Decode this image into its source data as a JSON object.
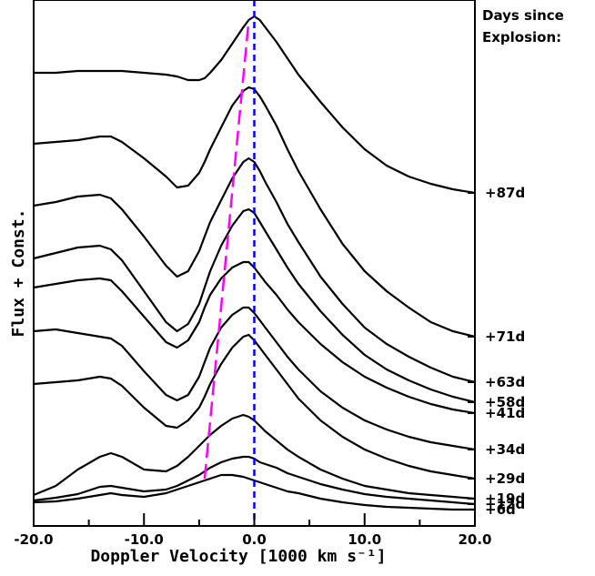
{
  "chart_data": {
    "type": "line",
    "title": "",
    "xlabel": "Doppler Velocity [1000 km s⁻¹]",
    "ylabel": "Flux + Const.",
    "xlim": [
      -20,
      20
    ],
    "x_ticks": [
      "-20.0",
      "-10.0",
      "0.0",
      "10.0",
      "20.0"
    ],
    "legend_title_line1": "Days since",
    "legend_title_line2": "Explosion:",
    "grid": false,
    "x": [
      -20,
      -18,
      -16,
      -14,
      -13,
      -12,
      -10,
      -8,
      -7,
      -6,
      -5,
      -4.5,
      -4,
      -3,
      -2,
      -1,
      -0.5,
      0,
      0.5,
      1,
      2,
      3,
      4,
      6,
      8,
      10,
      12,
      14,
      16,
      18,
      20
    ],
    "series": [
      {
        "name": "+6d",
        "values": [
          8,
          9,
          12,
          16,
          18,
          16,
          14,
          18,
          22,
          26,
          30,
          32,
          34,
          38,
          38,
          36,
          34,
          32,
          30,
          28,
          24,
          20,
          18,
          12,
          8,
          5,
          3,
          2,
          1,
          0,
          0
        ]
      },
      {
        "name": "+12d",
        "values": [
          10,
          13,
          17,
          25,
          26,
          24,
          20,
          22,
          26,
          32,
          38,
          42,
          46,
          52,
          56,
          58,
          58,
          56,
          52,
          50,
          46,
          40,
          36,
          28,
          22,
          17,
          14,
          12,
          10,
          8,
          6
        ]
      },
      {
        "name": "+19d",
        "values": [
          16,
          26,
          44,
          58,
          62,
          58,
          44,
          42,
          48,
          58,
          70,
          76,
          82,
          92,
          100,
          104,
          102,
          98,
          92,
          86,
          76,
          66,
          58,
          44,
          34,
          26,
          22,
          18,
          16,
          14,
          12
        ]
      },
      {
        "name": "+29d",
        "values": [
          138,
          140,
          142,
          146,
          144,
          136,
          112,
          92,
          90,
          98,
          112,
          124,
          138,
          160,
          178,
          190,
          192,
          186,
          178,
          170,
          154,
          138,
          122,
          98,
          80,
          66,
          56,
          48,
          42,
          38,
          34
        ]
      },
      {
        "name": "+34d",
        "values": [
          196,
          198,
          194,
          190,
          188,
          180,
          152,
          126,
          120,
          126,
          146,
          162,
          178,
          200,
          214,
          222,
          222,
          216,
          208,
          200,
          184,
          168,
          154,
          130,
          112,
          98,
          88,
          80,
          74,
          70,
          66
        ]
      },
      {
        "name": "+41d",
        "values": [
          244,
          248,
          252,
          254,
          252,
          240,
          212,
          184,
          178,
          186,
          206,
          222,
          236,
          254,
          266,
          272,
          272,
          266,
          258,
          250,
          236,
          220,
          206,
          182,
          162,
          146,
          134,
          124,
          116,
          110,
          106
        ]
      },
      {
        "name": "+58d",
        "values": [
          276,
          282,
          288,
          290,
          286,
          274,
          240,
          206,
          196,
          204,
          226,
          244,
          262,
          290,
          312,
          328,
          330,
          326,
          316,
          306,
          286,
          266,
          248,
          218,
          192,
          170,
          154,
          142,
          132,
          124,
          118
        ]
      },
      {
        "name": "+63d",
        "values": [
          334,
          338,
          344,
          346,
          342,
          330,
          300,
          268,
          256,
          262,
          284,
          300,
          316,
          340,
          364,
          382,
          386,
          382,
          372,
          360,
          338,
          314,
          294,
          256,
          226,
          200,
          182,
          168,
          156,
          146,
          140
        ]
      },
      {
        "name": "+71d",
        "values": [
          402,
          404,
          406,
          410,
          410,
          404,
          386,
          366,
          354,
          356,
          370,
          382,
          396,
          420,
          444,
          460,
          464,
          462,
          454,
          444,
          422,
          396,
          372,
          330,
          292,
          262,
          240,
          222,
          206,
          196,
          190
        ]
      },
      {
        "name": "+87d",
        "values": [
          480,
          480,
          482,
          482,
          482,
          482,
          480,
          478,
          476,
          472,
          472,
          474,
          480,
          494,
          512,
          530,
          538,
          542,
          538,
          530,
          514,
          496,
          478,
          448,
          420,
          396,
          378,
          366,
          358,
          352,
          348
        ]
      }
    ],
    "peak_trend_line": {
      "color": "#ff00ff",
      "x": [
        -4.5,
        -0.5
      ],
      "y": [
        34,
        538
      ]
    },
    "rest_velocity_line": {
      "color": "#0000ff",
      "x": 0
    },
    "line_color": "#000000"
  }
}
